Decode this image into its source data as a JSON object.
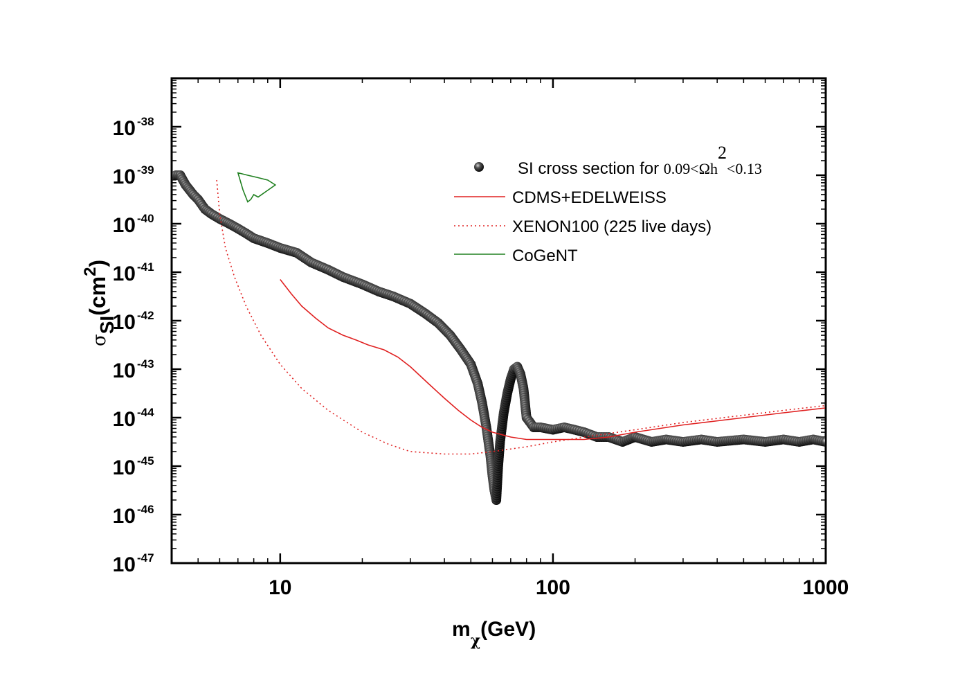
{
  "chart_data": {
    "type": "scatter",
    "xscale": "log",
    "yscale": "log",
    "xlim": [
      4,
      1000
    ],
    "ylim_exp": [
      -47,
      -37
    ],
    "x_ticks": [
      {
        "value": 10,
        "label": "10"
      },
      {
        "value": 100,
        "label": "100"
      },
      {
        "value": 1000,
        "label": "1000"
      }
    ],
    "y_ticks": [
      {
        "exp": -38,
        "base": "10",
        "sup": "-38"
      },
      {
        "exp": -39,
        "base": "10",
        "sup": "-39"
      },
      {
        "exp": -40,
        "base": "10",
        "sup": "-40"
      },
      {
        "exp": -41,
        "base": "10",
        "sup": "-41"
      },
      {
        "exp": -42,
        "base": "10",
        "sup": "-42"
      },
      {
        "exp": -43,
        "base": "10",
        "sup": "-43"
      },
      {
        "exp": -44,
        "base": "10",
        "sup": "-44"
      },
      {
        "exp": -45,
        "base": "10",
        "sup": "-45"
      },
      {
        "exp": -46,
        "base": "10",
        "sup": "-46"
      },
      {
        "exp": -47,
        "base": "10",
        "sup": "-47"
      }
    ],
    "xlabel": {
      "main": "m",
      "sub": "χ",
      "rest": "(GeV)"
    },
    "ylabel": {
      "sigma": "σ",
      "sub": "SI",
      "open": "(cm",
      "sup": "2",
      "close": ")"
    },
    "legend": {
      "position": "top-right",
      "entries": [
        {
          "label": "SI cross section for ",
          "math_a": "0.09<Ωh",
          "math_sup": "2",
          "math_b": "<0.13",
          "style": "dots",
          "color": "#000000"
        },
        {
          "label": "CDMS+EDELWEISS",
          "style": "solid",
          "color": "#e02020"
        },
        {
          "label": "XENON100 (225 live days)",
          "style": "dotted",
          "color": "#e02020"
        },
        {
          "label": "CoGeNT",
          "style": "solid",
          "color": "#208020"
        }
      ]
    },
    "series": [
      {
        "name": "SI cross section",
        "type": "scatter",
        "color": "#000000",
        "points_log10": [
          [
            4.15,
            -39.0
          ],
          [
            4.3,
            -39.0
          ],
          [
            4.5,
            -39.2
          ],
          [
            4.8,
            -39.4
          ],
          [
            5.0,
            -39.5
          ],
          [
            5.3,
            -39.7
          ],
          [
            5.6,
            -39.8
          ],
          [
            6.0,
            -39.9
          ],
          [
            6.5,
            -40.0
          ],
          [
            7.0,
            -40.1
          ],
          [
            7.5,
            -40.2
          ],
          [
            8.0,
            -40.3
          ],
          [
            9.0,
            -40.4
          ],
          [
            10.0,
            -40.5
          ],
          [
            11.5,
            -40.6
          ],
          [
            13.0,
            -40.8
          ],
          [
            15.0,
            -40.95
          ],
          [
            17.0,
            -41.1
          ],
          [
            20.0,
            -41.25
          ],
          [
            23.0,
            -41.4
          ],
          [
            26.0,
            -41.5
          ],
          [
            30.0,
            -41.65
          ],
          [
            34.0,
            -41.85
          ],
          [
            38.0,
            -42.05
          ],
          [
            42.0,
            -42.3
          ],
          [
            46.0,
            -42.6
          ],
          [
            50.0,
            -42.9
          ],
          [
            53.0,
            -43.3
          ],
          [
            55.0,
            -43.7
          ],
          [
            57.0,
            -44.2
          ],
          [
            59.0,
            -44.8
          ],
          [
            60.0,
            -45.2
          ],
          [
            61.0,
            -45.5
          ],
          [
            62.0,
            -45.7
          ],
          [
            63.0,
            -45.0
          ],
          [
            64.0,
            -44.5
          ],
          [
            66.0,
            -43.9
          ],
          [
            68.0,
            -43.5
          ],
          [
            70.0,
            -43.2
          ],
          [
            72.0,
            -43.0
          ],
          [
            74.0,
            -42.95
          ],
          [
            76.0,
            -43.1
          ],
          [
            78.0,
            -43.4
          ],
          [
            80.0,
            -44.0
          ],
          [
            85.0,
            -44.2
          ],
          [
            90.0,
            -44.2
          ],
          [
            100.0,
            -44.25
          ],
          [
            110.0,
            -44.2
          ],
          [
            120.0,
            -44.25
          ],
          [
            130.0,
            -44.3
          ],
          [
            145.0,
            -44.4
          ],
          [
            160.0,
            -44.4
          ],
          [
            180.0,
            -44.5
          ],
          [
            200.0,
            -44.4
          ],
          [
            230.0,
            -44.5
          ],
          [
            260.0,
            -44.45
          ],
          [
            300.0,
            -44.5
          ],
          [
            350.0,
            -44.45
          ],
          [
            400.0,
            -44.5
          ],
          [
            500.0,
            -44.45
          ],
          [
            600.0,
            -44.5
          ],
          [
            700.0,
            -44.45
          ],
          [
            800.0,
            -44.5
          ],
          [
            900.0,
            -44.45
          ],
          [
            1000.0,
            -44.5
          ]
        ]
      },
      {
        "name": "CDMS+EDELWEISS",
        "type": "line",
        "color": "#e02020",
        "points_log10": [
          [
            10.0,
            -41.15
          ],
          [
            11.0,
            -41.45
          ],
          [
            12.0,
            -41.7
          ],
          [
            13.5,
            -41.95
          ],
          [
            15.0,
            -42.15
          ],
          [
            17.0,
            -42.3
          ],
          [
            19.0,
            -42.4
          ],
          [
            21.0,
            -42.5
          ],
          [
            24.0,
            -42.6
          ],
          [
            27.0,
            -42.75
          ],
          [
            30.0,
            -42.95
          ],
          [
            35.0,
            -43.3
          ],
          [
            40.0,
            -43.6
          ],
          [
            45.0,
            -43.85
          ],
          [
            50.0,
            -44.05
          ],
          [
            55.0,
            -44.2
          ],
          [
            60.0,
            -44.3
          ],
          [
            70.0,
            -44.4
          ],
          [
            80.0,
            -44.45
          ],
          [
            100.0,
            -44.45
          ],
          [
            130.0,
            -44.45
          ],
          [
            160.0,
            -44.4
          ],
          [
            200.0,
            -44.3
          ],
          [
            300.0,
            -44.15
          ],
          [
            500.0,
            -44.0
          ],
          [
            700.0,
            -43.9
          ],
          [
            1000.0,
            -43.8
          ]
        ]
      },
      {
        "name": "XENON100 (225 live days)",
        "type": "line-dotted",
        "color": "#e02020",
        "points_log10": [
          [
            5.85,
            -39.1
          ],
          [
            6.0,
            -39.8
          ],
          [
            6.3,
            -40.5
          ],
          [
            6.8,
            -41.1
          ],
          [
            7.5,
            -41.7
          ],
          [
            8.5,
            -42.3
          ],
          [
            10.0,
            -42.9
          ],
          [
            12.0,
            -43.4
          ],
          [
            15.0,
            -43.85
          ],
          [
            20.0,
            -44.3
          ],
          [
            25.0,
            -44.55
          ],
          [
            30.0,
            -44.7
          ],
          [
            40.0,
            -44.75
          ],
          [
            50.0,
            -44.75
          ],
          [
            60.0,
            -44.7
          ],
          [
            80.0,
            -44.6
          ],
          [
            100.0,
            -44.5
          ],
          [
            150.0,
            -44.35
          ],
          [
            200.0,
            -44.25
          ],
          [
            300.0,
            -44.1
          ],
          [
            500.0,
            -43.95
          ],
          [
            700.0,
            -43.85
          ],
          [
            1000.0,
            -43.75
          ]
        ]
      },
      {
        "name": "CoGeNT",
        "type": "closed-contour",
        "color": "#208020",
        "points_log10": [
          [
            7.0,
            -38.95
          ],
          [
            7.6,
            -39.0
          ],
          [
            8.3,
            -39.05
          ],
          [
            9.0,
            -39.1
          ],
          [
            9.6,
            -39.2
          ],
          [
            8.8,
            -39.35
          ],
          [
            8.3,
            -39.45
          ],
          [
            8.0,
            -39.4
          ],
          [
            7.8,
            -39.5
          ],
          [
            7.6,
            -39.55
          ],
          [
            7.3,
            -39.3
          ],
          [
            7.0,
            -38.95
          ]
        ]
      }
    ]
  }
}
